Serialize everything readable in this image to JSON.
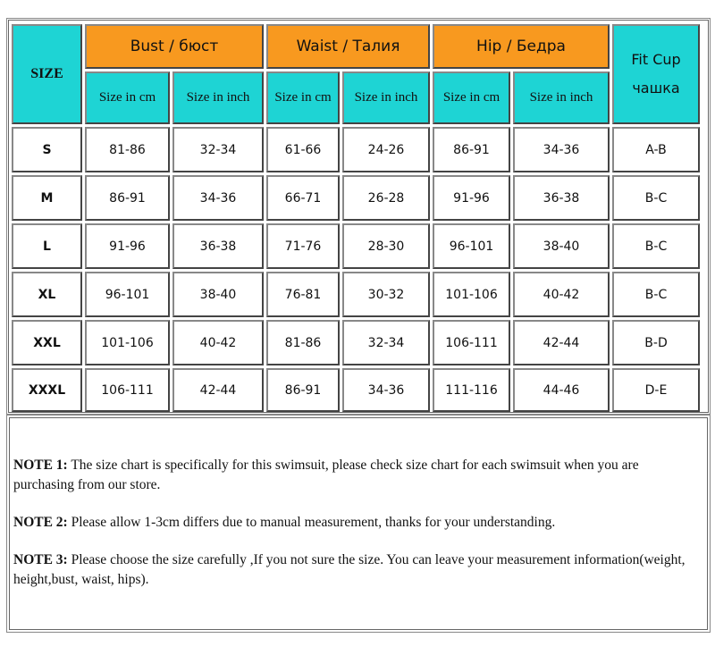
{
  "colors": {
    "header_cyan": "#1ed4d4",
    "header_orange": "#f8991f"
  },
  "header": {
    "size": "SIZE",
    "groups": [
      "Bust / бюст",
      "Waist / Талия",
      "Hip / Бедра"
    ],
    "fit_cup": [
      "Fit Cup",
      "чашка"
    ],
    "sub": [
      "Size in cm",
      "Size in inch",
      "Size in cm",
      "Size in inch",
      "Size in cm",
      "Size in inch"
    ]
  },
  "rows": [
    [
      "S",
      "81-86",
      "32-34",
      "61-66",
      "24-26",
      "86-91",
      "34-36",
      "A-B"
    ],
    [
      "M",
      "86-91",
      "34-36",
      "66-71",
      "26-28",
      "91-96",
      "36-38",
      "B-C"
    ],
    [
      "L",
      "91-96",
      "36-38",
      "71-76",
      "28-30",
      "96-101",
      "38-40",
      "B-C"
    ],
    [
      "XL",
      "96-101",
      "38-40",
      "76-81",
      "30-32",
      "101-106",
      "40-42",
      "B-C"
    ],
    [
      "XXL",
      "101-106",
      "40-42",
      "81-86",
      "32-34",
      "106-111",
      "42-44",
      "B-D"
    ],
    [
      "XXXL",
      "106-111",
      "42-44",
      "86-91",
      "34-36",
      "111-116",
      "44-46",
      "D-E"
    ]
  ],
  "notes": [
    {
      "label": "NOTE 1:",
      "text": " The size chart is specifically for this swimsuit, please check size chart for each swimsuit when you are purchasing from our store."
    },
    {
      "label": "NOTE 2:",
      "text": " Please allow 1-3cm differs due to manual measurement, thanks for your understanding."
    },
    {
      "label": "NOTE 3:",
      "text": " Please choose the size carefully ,If you not sure the size. You can leave your measurement information(weight, height,bust, waist, hips)."
    }
  ]
}
